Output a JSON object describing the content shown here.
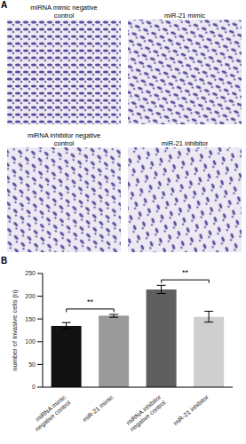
{
  "panel_a": {
    "label": "A",
    "images": [
      {
        "caption": "miRNA mimic negative control"
      },
      {
        "caption": "miR-21 mimic"
      },
      {
        "caption": "miRNA inhibitor negative control"
      },
      {
        "caption": "miR-21 inhibitor"
      }
    ]
  },
  "panel_b": {
    "label": "B"
  },
  "chart_data": {
    "type": "bar",
    "y_label": "number of invasive cells (n)",
    "categories": [
      "miRNA mimic negative control",
      "miR-21 mimic",
      "miRNA inhibitor negative control",
      "miR-21 inhibitor"
    ],
    "values": [
      135,
      157,
      215,
      155
    ],
    "errors": [
      7,
      3,
      9,
      12
    ],
    "colors": [
      "#111111",
      "#9a9a9a",
      "#5f5f5f",
      "#cfcfcf"
    ],
    "ylim": [
      0,
      250
    ],
    "yticks": [
      0,
      50,
      100,
      150,
      200,
      250
    ],
    "grid": false,
    "annotations": [
      {
        "text": "**",
        "between": [
          "miRNA mimic negative control",
          "miR-21 mimic"
        ]
      },
      {
        "text": "**",
        "between": [
          "miRNA inhibitor negative control",
          "miR-21 inhibitor"
        ]
      }
    ]
  }
}
